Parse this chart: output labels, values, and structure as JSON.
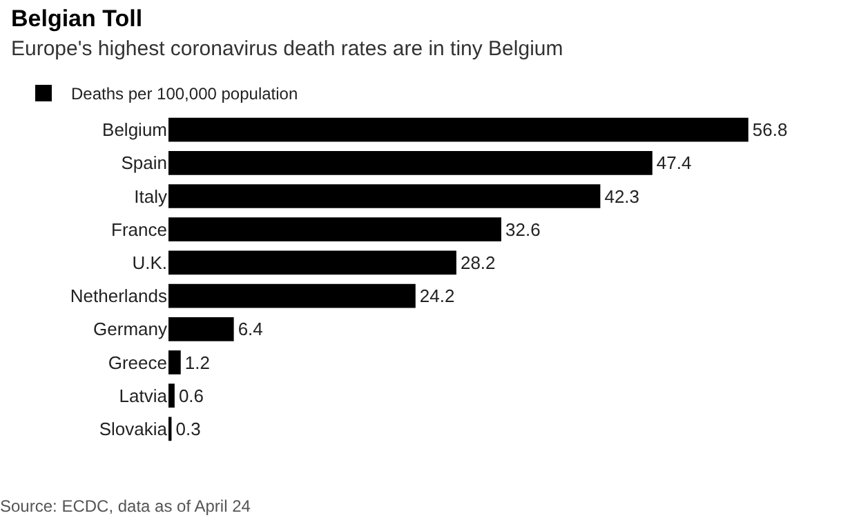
{
  "chart_data": {
    "type": "bar",
    "orientation": "horizontal",
    "title": "Belgian Toll",
    "subtitle": "Europe's highest coronavirus death rates are in tiny Belgium",
    "categories": [
      "Belgium",
      "Spain",
      "Italy",
      "France",
      "U.K.",
      "Netherlands",
      "Germany",
      "Greece",
      "Latvia",
      "Slovakia"
    ],
    "series": [
      {
        "name": "Deaths per 100,000 population",
        "color": "#000000",
        "values": [
          56.8,
          47.4,
          42.3,
          32.6,
          28.2,
          24.2,
          6.4,
          1.2,
          0.6,
          0.3
        ]
      }
    ],
    "data_labels": true,
    "legend": "top left",
    "annotations": [
      "Source: ECDC, data as of April 24"
    ]
  }
}
